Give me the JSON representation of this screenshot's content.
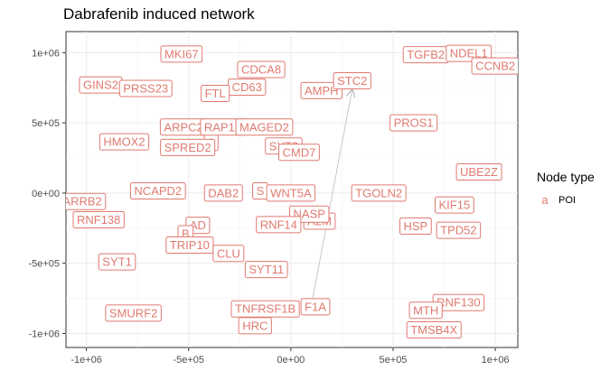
{
  "chart_data": {
    "type": "network",
    "title": "Dabrafenib induced network",
    "xlim": [
      -1100000,
      1110000
    ],
    "ylim": [
      -1100000,
      1150000
    ],
    "x_ticks": [
      -1000000,
      -500000,
      0,
      500000,
      1000000
    ],
    "x_tick_labels": [
      "-1e+06",
      "-5e+05",
      "0e+00",
      "5e+05",
      "1e+06"
    ],
    "y_ticks": [
      1000000,
      500000,
      0,
      -500000,
      -1000000
    ],
    "y_tick_labels": [
      "1e+06",
      "5e+05",
      "0e+00",
      "-5e+05",
      "-1e+06"
    ],
    "grid": true,
    "legend": {
      "title": "Node type",
      "key_glyph": "a",
      "position": "right",
      "entries": [
        {
          "label": "POI",
          "color": "#e07a70"
        }
      ]
    },
    "edges": [
      {
        "from": [
          100000,
          -800000
        ],
        "to": [
          300000,
          740000
        ]
      }
    ],
    "nodes": [
      {
        "label": "MKI67",
        "x": -535000,
        "y": 990000
      },
      {
        "label": "TGFB2",
        "x": 660000,
        "y": 985000
      },
      {
        "label": "NDEL1",
        "x": 870000,
        "y": 995000
      },
      {
        "label": "CCNB2",
        "x": 1000000,
        "y": 905000
      },
      {
        "label": "CDCA8",
        "x": -145000,
        "y": 880000
      },
      {
        "label": "GINS2",
        "x": -930000,
        "y": 770000
      },
      {
        "label": "PRSS23",
        "x": -710000,
        "y": 745000
      },
      {
        "label": "CD63",
        "x": -215000,
        "y": 755000
      },
      {
        "label": "FTL",
        "x": -370000,
        "y": 710000
      },
      {
        "label": "AMPH",
        "x": 150000,
        "y": 730000
      },
      {
        "label": "STC2",
        "x": 300000,
        "y": 800000
      },
      {
        "label": "PROS1",
        "x": 600000,
        "y": 500000
      },
      {
        "label": "ARPC2",
        "x": -525000,
        "y": 470000
      },
      {
        "label": "RAP1B",
        "x": -330000,
        "y": 470000
      },
      {
        "label": "MAGED2",
        "x": -130000,
        "y": 470000
      },
      {
        "label": "HMOX2",
        "x": -815000,
        "y": 365000
      },
      {
        "label": "SPRED2",
        "x": -505000,
        "y": 325000
      },
      {
        "label": "SYT2",
        "x": -35000,
        "y": 335000
      },
      {
        "label": "CMD7",
        "x": 40000,
        "y": 290000
      },
      {
        "label": "UBE2Z",
        "x": 920000,
        "y": 150000
      },
      {
        "label": "ARRB2",
        "x": -1020000,
        "y": -60000
      },
      {
        "label": "NCAPD2",
        "x": -650000,
        "y": 15000
      },
      {
        "label": "DAB2",
        "x": -330000,
        "y": 0
      },
      {
        "label": "WNT5A",
        "x": 0,
        "y": 0
      },
      {
        "label": "TGOLN2",
        "x": 430000,
        "y": 0
      },
      {
        "label": "KIF15",
        "x": 800000,
        "y": -85000
      },
      {
        "label": "RNF138",
        "x": -940000,
        "y": -190000
      },
      {
        "label": "NASP",
        "x": 90000,
        "y": -150000
      },
      {
        "label": "RNF14",
        "x": -60000,
        "y": -225000
      },
      {
        "label": "TPD52",
        "x": 820000,
        "y": -265000
      },
      {
        "label": "HSP",
        "x": 610000,
        "y": -235000
      },
      {
        "label": "TRIP10",
        "x": -495000,
        "y": -370000
      },
      {
        "label": "CLU",
        "x": -305000,
        "y": -430000
      },
      {
        "label": "SYT11",
        "x": -120000,
        "y": -545000
      },
      {
        "label": "SYT1",
        "x": -850000,
        "y": -490000
      },
      {
        "label": "TNFRSF1B",
        "x": -125000,
        "y": -825000
      },
      {
        "label": "SMURF2",
        "x": -770000,
        "y": -855000
      },
      {
        "label": "RNF130",
        "x": 820000,
        "y": -780000
      },
      {
        "label": "MTH",
        "x": 660000,
        "y": -835000
      },
      {
        "label": "HRC",
        "x": -175000,
        "y": -945000
      },
      {
        "label": "TMSB4X",
        "x": 700000,
        "y": -975000
      }
    ],
    "partial_nodes": [
      {
        "label": "F1A",
        "x": 120000,
        "y": -810000
      },
      {
        "label": "A2M",
        "x": 140000,
        "y": -200000
      },
      {
        "label": "AD",
        "x": -455000,
        "y": -230000
      },
      {
        "label": "S",
        "x": -150000,
        "y": 15000
      },
      {
        "label": "B",
        "x": -515000,
        "y": -290000
      },
      {
        "label": "1",
        "x": -390000,
        "y": 360000
      }
    ]
  }
}
